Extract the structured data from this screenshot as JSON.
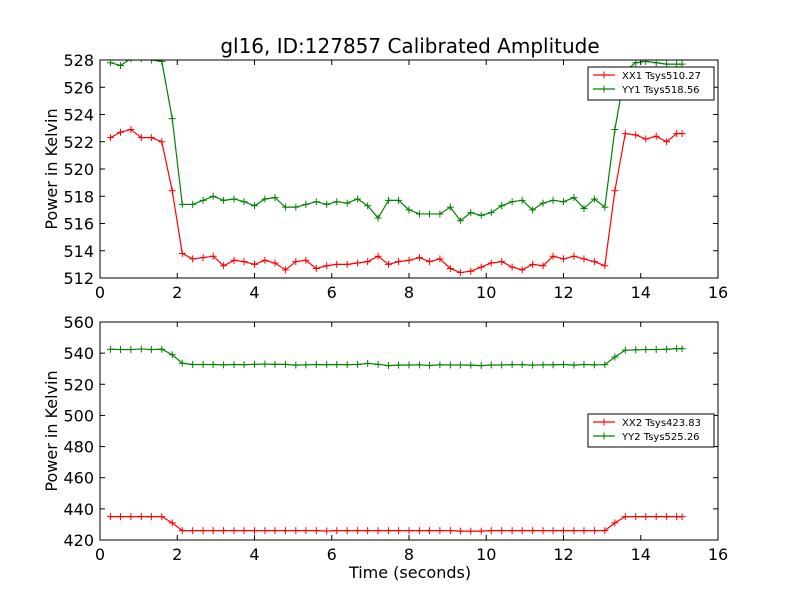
{
  "figure": {
    "title": "gl16, ID:127857 Calibrated Amplitude",
    "xlabel": "Time (seconds)"
  },
  "chart_data": [
    {
      "type": "line",
      "ylabel": "Power in Kelvin",
      "xlim": [
        0,
        16
      ],
      "ylim": [
        512,
        528
      ],
      "xticks": [
        0,
        2,
        4,
        6,
        8,
        10,
        12,
        14,
        16
      ],
      "yticks": [
        512,
        514,
        516,
        518,
        520,
        522,
        524,
        526,
        528
      ],
      "legend_position": "top-right",
      "x": [
        0.27,
        0.53,
        0.8,
        1.07,
        1.33,
        1.6,
        1.87,
        2.13,
        2.4,
        2.67,
        2.93,
        3.2,
        3.47,
        3.73,
        4.0,
        4.27,
        4.53,
        4.8,
        5.07,
        5.33,
        5.6,
        5.87,
        6.13,
        6.4,
        6.67,
        6.93,
        7.2,
        7.47,
        7.73,
        8.0,
        8.27,
        8.53,
        8.8,
        9.07,
        9.33,
        9.6,
        9.87,
        10.13,
        10.4,
        10.67,
        10.93,
        11.2,
        11.47,
        11.73,
        12.0,
        12.27,
        12.53,
        12.8,
        13.07,
        13.33,
        13.6,
        13.87,
        14.13,
        14.4,
        14.67,
        14.93,
        15.07
      ],
      "series": [
        {
          "name": "XX1 Tsys510.27",
          "color": "#ff0000",
          "values": [
            522.3,
            522.7,
            522.9,
            522.3,
            522.3,
            522.0,
            518.4,
            513.8,
            513.4,
            513.5,
            513.6,
            512.9,
            513.3,
            513.2,
            513.0,
            513.3,
            513.1,
            512.6,
            513.2,
            513.3,
            512.7,
            512.9,
            513.0,
            513.0,
            513.1,
            513.2,
            513.6,
            513.0,
            513.2,
            513.3,
            513.5,
            513.2,
            513.4,
            512.7,
            512.4,
            512.5,
            512.8,
            513.1,
            513.2,
            512.8,
            512.6,
            513.0,
            512.9,
            513.6,
            513.4,
            513.6,
            513.4,
            513.2,
            512.9,
            518.4,
            522.6,
            522.5,
            522.2,
            522.4,
            522.0,
            522.6,
            522.6
          ]
        },
        {
          "name": "YY1 Tsys518.56",
          "color": "#008000",
          "values": [
            527.8,
            527.6,
            528.1,
            528.1,
            528.0,
            527.9,
            523.7,
            517.4,
            517.4,
            517.7,
            518.0,
            517.7,
            517.8,
            517.6,
            517.3,
            517.8,
            517.9,
            517.2,
            517.2,
            517.4,
            517.6,
            517.4,
            517.6,
            517.5,
            517.8,
            517.3,
            516.4,
            517.7,
            517.7,
            517.0,
            516.7,
            516.7,
            516.7,
            517.2,
            516.2,
            516.8,
            516.6,
            516.8,
            517.3,
            517.6,
            517.7,
            517.0,
            517.5,
            517.7,
            517.6,
            517.9,
            517.1,
            517.8,
            517.2,
            522.9,
            527.2,
            527.8,
            527.9,
            527.8,
            527.7,
            527.7,
            527.7
          ]
        }
      ]
    },
    {
      "type": "line",
      "ylabel": "Power in Kelvin",
      "xlabel": "Time (seconds)",
      "xlim": [
        0,
        16
      ],
      "ylim": [
        420,
        560
      ],
      "xticks": [
        0,
        2,
        4,
        6,
        8,
        10,
        12,
        14,
        16
      ],
      "yticks": [
        420,
        440,
        460,
        480,
        500,
        520,
        540,
        560
      ],
      "legend_position": "center-right",
      "x": [
        0.27,
        0.53,
        0.8,
        1.07,
        1.33,
        1.6,
        1.87,
        2.13,
        2.4,
        2.67,
        2.93,
        3.2,
        3.47,
        3.73,
        4.0,
        4.27,
        4.53,
        4.8,
        5.07,
        5.33,
        5.6,
        5.87,
        6.13,
        6.4,
        6.67,
        6.93,
        7.2,
        7.47,
        7.73,
        8.0,
        8.27,
        8.53,
        8.8,
        9.07,
        9.33,
        9.6,
        9.87,
        10.13,
        10.4,
        10.67,
        10.93,
        11.2,
        11.47,
        11.73,
        12.0,
        12.27,
        12.53,
        12.8,
        13.07,
        13.33,
        13.6,
        13.87,
        14.13,
        14.4,
        14.67,
        14.93,
        15.07
      ],
      "series": [
        {
          "name": "XX2 Tsys423.83",
          "color": "#ff0000",
          "values": [
            435,
            435,
            435,
            435,
            435,
            435,
            431,
            426,
            426,
            426,
            426,
            426,
            426,
            426,
            426,
            426,
            426,
            426,
            426,
            426,
            426,
            425.8,
            426,
            426,
            426,
            426,
            426,
            426,
            426,
            426,
            426,
            426,
            426,
            426,
            425.7,
            425.7,
            425.7,
            426,
            426,
            426,
            426,
            426,
            426,
            426,
            426,
            426,
            426,
            426,
            426,
            431,
            435,
            435,
            435,
            435,
            435,
            435,
            435
          ]
        },
        {
          "name": "YY2 Tsys525.26",
          "color": "#008000",
          "values": [
            542.5,
            542.3,
            542.3,
            542.7,
            542.3,
            542.5,
            539,
            533.5,
            532.7,
            532.7,
            532.7,
            532.5,
            532.7,
            532.6,
            532.8,
            533,
            532.8,
            532.8,
            532.3,
            532.5,
            532.7,
            532.6,
            532.7,
            532.6,
            532.7,
            533.4,
            532.8,
            532,
            532.3,
            532.4,
            532.5,
            532.1,
            532.5,
            532.4,
            532.4,
            532.3,
            532,
            532.4,
            532.4,
            532.6,
            532.6,
            532.3,
            532.5,
            532.5,
            532.7,
            532.3,
            532.7,
            532.5,
            532.6,
            537.5,
            541.9,
            542.1,
            542.3,
            542.3,
            542.5,
            542.9,
            542.9
          ]
        }
      ]
    }
  ]
}
